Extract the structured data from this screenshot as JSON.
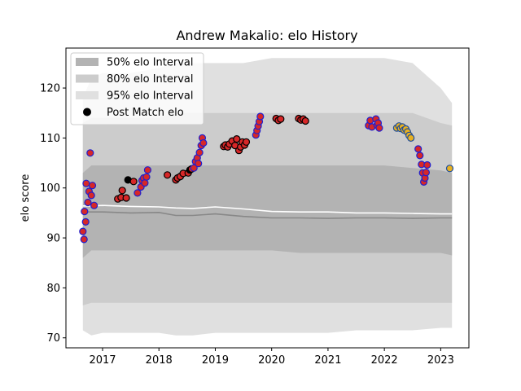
{
  "chart_data": {
    "type": "scatter",
    "title": "Andrew Makalio: elo History",
    "xlabel": "",
    "ylabel": "elo score",
    "xlim": [
      2016.35,
      2023.5
    ],
    "ylim": [
      68,
      128
    ],
    "x_ticks": [
      2017,
      2018,
      2019,
      2020,
      2021,
      2022,
      2023
    ],
    "x_tick_labels": [
      "2017",
      "2018",
      "2019",
      "2020",
      "2021",
      "2022",
      "2023"
    ],
    "y_ticks": [
      70,
      80,
      90,
      100,
      110,
      120
    ],
    "y_tick_labels": [
      "70",
      "80",
      "90",
      "100",
      "110",
      "120"
    ],
    "legend_position": "top-left",
    "legend": [
      {
        "label": "50% elo Interval",
        "kind": "band",
        "color": "#b3b3b3"
      },
      {
        "label": "80% elo Interval",
        "kind": "band",
        "color": "#cccccc"
      },
      {
        "label": "95% elo Interval",
        "kind": "band",
        "color": "#e0e0e0"
      },
      {
        "label": "Post Match elo",
        "kind": "marker",
        "color": "#000000"
      }
    ],
    "colors": {
      "band95": "#e0e0e0",
      "band80": "#cccccc",
      "band50": "#b3b3b3",
      "median_line": "#888888",
      "mean_line": "#ffffff",
      "marker_red": "#d62728",
      "edge_blue": "#1f1fcf",
      "edge_black": "#000000",
      "marker_gold": "#e8b020",
      "edge_navy": "#1f4e9b"
    },
    "intervals": {
      "x": [
        2016.65,
        2016.8,
        2017.0,
        2017.5,
        2018.0,
        2018.3,
        2018.6,
        2019.0,
        2019.5,
        2020.0,
        2020.5,
        2021.0,
        2021.5,
        2022.0,
        2022.5,
        2023.0,
        2023.2
      ],
      "band95_upper": [
        118,
        122,
        123,
        123,
        124,
        125,
        125,
        125,
        125,
        126,
        126,
        126,
        126,
        126,
        125,
        120,
        117
      ],
      "band95_lower": [
        71.5,
        70.5,
        71,
        71,
        71,
        70.5,
        70.5,
        71,
        71,
        71,
        71,
        71,
        71.5,
        71.5,
        71.5,
        72,
        72
      ],
      "band80_upper": [
        113,
        114,
        114,
        114,
        114,
        115,
        115,
        115,
        115,
        115,
        115,
        115,
        115,
        115,
        115,
        113,
        112.5
      ],
      "band80_lower": [
        76.5,
        77,
        77,
        77,
        77,
        77,
        77,
        77,
        77,
        77,
        77,
        77,
        77,
        77,
        77,
        77,
        77
      ],
      "band50_upper": [
        103,
        104.5,
        104.5,
        104.5,
        104.5,
        104.5,
        104.5,
        104.5,
        104.5,
        104.5,
        104.5,
        104.5,
        104.5,
        104.5,
        104,
        103.5,
        103
      ],
      "band50_lower": [
        86,
        87.5,
        87.5,
        87.5,
        87.5,
        87.5,
        87.5,
        87.5,
        87.5,
        87.5,
        87,
        87,
        87,
        87,
        87,
        87,
        86.5
      ],
      "median": [
        95.2,
        95.2,
        95.2,
        95.0,
        95.1,
        94.5,
        94.5,
        94.8,
        94.3,
        94.0,
        94.0,
        93.9,
        94.0,
        94.0,
        93.9,
        94.0,
        94.0
      ],
      "mean": [
        96.4,
        96.4,
        96.5,
        96.3,
        96.2,
        96.0,
        95.9,
        96.2,
        95.8,
        95.3,
        95.2,
        95.2,
        95.0,
        95.0,
        94.9,
        94.8,
        94.8
      ]
    },
    "points": [
      {
        "x": 2016.65,
        "y": 91.3,
        "fill": "red",
        "edge": "blue"
      },
      {
        "x": 2016.67,
        "y": 89.7,
        "fill": "red",
        "edge": "blue"
      },
      {
        "x": 2016.68,
        "y": 95.3,
        "fill": "red",
        "edge": "blue"
      },
      {
        "x": 2016.7,
        "y": 93.2,
        "fill": "red",
        "edge": "blue"
      },
      {
        "x": 2016.71,
        "y": 100.9,
        "fill": "red",
        "edge": "blue"
      },
      {
        "x": 2016.74,
        "y": 97.1,
        "fill": "red",
        "edge": "blue"
      },
      {
        "x": 2016.76,
        "y": 99.3,
        "fill": "red",
        "edge": "blue"
      },
      {
        "x": 2016.78,
        "y": 107.0,
        "fill": "red",
        "edge": "blue"
      },
      {
        "x": 2016.8,
        "y": 98.5,
        "fill": "red",
        "edge": "blue"
      },
      {
        "x": 2016.82,
        "y": 100.5,
        "fill": "red",
        "edge": "blue"
      },
      {
        "x": 2016.85,
        "y": 96.5,
        "fill": "red",
        "edge": "blue"
      },
      {
        "x": 2017.27,
        "y": 97.8,
        "fill": "red",
        "edge": "black"
      },
      {
        "x": 2017.33,
        "y": 98.1,
        "fill": "red",
        "edge": "black"
      },
      {
        "x": 2017.35,
        "y": 99.5,
        "fill": "red",
        "edge": "black"
      },
      {
        "x": 2017.42,
        "y": 98.0,
        "fill": "red",
        "edge": "black"
      },
      {
        "x": 2017.45,
        "y": 101.6,
        "fill": "black",
        "edge": "black"
      },
      {
        "x": 2017.55,
        "y": 101.3,
        "fill": "red",
        "edge": "black"
      },
      {
        "x": 2017.62,
        "y": 99.0,
        "fill": "red",
        "edge": "blue"
      },
      {
        "x": 2017.68,
        "y": 100.2,
        "fill": "red",
        "edge": "blue"
      },
      {
        "x": 2017.7,
        "y": 101.5,
        "fill": "red",
        "edge": "blue"
      },
      {
        "x": 2017.73,
        "y": 102.0,
        "fill": "red",
        "edge": "blue"
      },
      {
        "x": 2017.75,
        "y": 101.0,
        "fill": "red",
        "edge": "blue"
      },
      {
        "x": 2017.78,
        "y": 102.2,
        "fill": "red",
        "edge": "blue"
      },
      {
        "x": 2017.8,
        "y": 103.6,
        "fill": "red",
        "edge": "blue"
      },
      {
        "x": 2018.15,
        "y": 102.6,
        "fill": "red",
        "edge": "black"
      },
      {
        "x": 2018.3,
        "y": 101.6,
        "fill": "red",
        "edge": "black"
      },
      {
        "x": 2018.33,
        "y": 102.0,
        "fill": "red",
        "edge": "black"
      },
      {
        "x": 2018.38,
        "y": 102.3,
        "fill": "red",
        "edge": "black"
      },
      {
        "x": 2018.43,
        "y": 102.9,
        "fill": "red",
        "edge": "black"
      },
      {
        "x": 2018.52,
        "y": 103.0,
        "fill": "red",
        "edge": "black"
      },
      {
        "x": 2018.55,
        "y": 103.6,
        "fill": "black",
        "edge": "black"
      },
      {
        "x": 2018.58,
        "y": 103.8,
        "fill": "red",
        "edge": "black"
      },
      {
        "x": 2018.62,
        "y": 104.0,
        "fill": "red",
        "edge": "blue"
      },
      {
        "x": 2018.65,
        "y": 105.3,
        "fill": "red",
        "edge": "blue"
      },
      {
        "x": 2018.68,
        "y": 106.0,
        "fill": "red",
        "edge": "blue"
      },
      {
        "x": 2018.7,
        "y": 104.9,
        "fill": "red",
        "edge": "blue"
      },
      {
        "x": 2018.72,
        "y": 107.1,
        "fill": "red",
        "edge": "blue"
      },
      {
        "x": 2018.75,
        "y": 108.5,
        "fill": "red",
        "edge": "blue"
      },
      {
        "x": 2018.77,
        "y": 110.0,
        "fill": "red",
        "edge": "blue"
      },
      {
        "x": 2018.79,
        "y": 109.0,
        "fill": "red",
        "edge": "blue"
      },
      {
        "x": 2019.15,
        "y": 108.3,
        "fill": "red",
        "edge": "black"
      },
      {
        "x": 2019.18,
        "y": 108.6,
        "fill": "red",
        "edge": "black"
      },
      {
        "x": 2019.22,
        "y": 108.2,
        "fill": "red",
        "edge": "black"
      },
      {
        "x": 2019.25,
        "y": 108.8,
        "fill": "red",
        "edge": "black"
      },
      {
        "x": 2019.3,
        "y": 109.4,
        "fill": "red",
        "edge": "black"
      },
      {
        "x": 2019.35,
        "y": 108.5,
        "fill": "red",
        "edge": "black"
      },
      {
        "x": 2019.38,
        "y": 109.8,
        "fill": "red",
        "edge": "black"
      },
      {
        "x": 2019.42,
        "y": 107.5,
        "fill": "red",
        "edge": "black"
      },
      {
        "x": 2019.45,
        "y": 108.2,
        "fill": "red",
        "edge": "black"
      },
      {
        "x": 2019.48,
        "y": 109.2,
        "fill": "red",
        "edge": "black"
      },
      {
        "x": 2019.52,
        "y": 108.6,
        "fill": "red",
        "edge": "black"
      },
      {
        "x": 2019.55,
        "y": 109.2,
        "fill": "red",
        "edge": "black"
      },
      {
        "x": 2019.72,
        "y": 110.6,
        "fill": "red",
        "edge": "blue"
      },
      {
        "x": 2019.74,
        "y": 111.5,
        "fill": "red",
        "edge": "blue"
      },
      {
        "x": 2019.76,
        "y": 112.4,
        "fill": "red",
        "edge": "blue"
      },
      {
        "x": 2019.78,
        "y": 113.3,
        "fill": "red",
        "edge": "blue"
      },
      {
        "x": 2019.8,
        "y": 114.3,
        "fill": "red",
        "edge": "blue"
      },
      {
        "x": 2020.08,
        "y": 113.9,
        "fill": "red",
        "edge": "black"
      },
      {
        "x": 2020.12,
        "y": 113.5,
        "fill": "red",
        "edge": "black"
      },
      {
        "x": 2020.16,
        "y": 113.8,
        "fill": "red",
        "edge": "black"
      },
      {
        "x": 2020.48,
        "y": 113.9,
        "fill": "red",
        "edge": "black"
      },
      {
        "x": 2020.52,
        "y": 113.6,
        "fill": "red",
        "edge": "black"
      },
      {
        "x": 2020.56,
        "y": 113.8,
        "fill": "red",
        "edge": "black"
      },
      {
        "x": 2020.6,
        "y": 113.4,
        "fill": "red",
        "edge": "black"
      },
      {
        "x": 2021.72,
        "y": 112.5,
        "fill": "red",
        "edge": "blue"
      },
      {
        "x": 2021.75,
        "y": 113.5,
        "fill": "red",
        "edge": "blue"
      },
      {
        "x": 2021.78,
        "y": 112.2,
        "fill": "red",
        "edge": "blue"
      },
      {
        "x": 2021.85,
        "y": 113.8,
        "fill": "red",
        "edge": "blue"
      },
      {
        "x": 2021.87,
        "y": 112.6,
        "fill": "red",
        "edge": "blue"
      },
      {
        "x": 2021.89,
        "y": 113.0,
        "fill": "red",
        "edge": "blue"
      },
      {
        "x": 2021.91,
        "y": 112.0,
        "fill": "red",
        "edge": "blue"
      },
      {
        "x": 2022.22,
        "y": 112.0,
        "fill": "gold",
        "edge": "navy"
      },
      {
        "x": 2022.26,
        "y": 112.4,
        "fill": "gold",
        "edge": "navy"
      },
      {
        "x": 2022.29,
        "y": 111.9,
        "fill": "gold",
        "edge": "navy"
      },
      {
        "x": 2022.32,
        "y": 112.2,
        "fill": "gold",
        "edge": "navy"
      },
      {
        "x": 2022.35,
        "y": 111.6,
        "fill": "gold",
        "edge": "navy"
      },
      {
        "x": 2022.38,
        "y": 111.8,
        "fill": "gold",
        "edge": "navy"
      },
      {
        "x": 2022.41,
        "y": 111.2,
        "fill": "gold",
        "edge": "navy"
      },
      {
        "x": 2022.44,
        "y": 110.5,
        "fill": "gold",
        "edge": "navy"
      },
      {
        "x": 2022.47,
        "y": 110.0,
        "fill": "gold",
        "edge": "navy"
      },
      {
        "x": 2022.6,
        "y": 107.8,
        "fill": "red",
        "edge": "blue"
      },
      {
        "x": 2022.63,
        "y": 106.5,
        "fill": "red",
        "edge": "blue"
      },
      {
        "x": 2022.66,
        "y": 104.7,
        "fill": "red",
        "edge": "blue"
      },
      {
        "x": 2022.68,
        "y": 103.0,
        "fill": "red",
        "edge": "blue"
      },
      {
        "x": 2022.7,
        "y": 101.2,
        "fill": "red",
        "edge": "blue"
      },
      {
        "x": 2022.72,
        "y": 102.0,
        "fill": "red",
        "edge": "blue"
      },
      {
        "x": 2022.74,
        "y": 103.1,
        "fill": "red",
        "edge": "blue"
      },
      {
        "x": 2022.76,
        "y": 104.6,
        "fill": "red",
        "edge": "blue"
      },
      {
        "x": 2023.16,
        "y": 103.9,
        "fill": "gold",
        "edge": "navy"
      }
    ]
  }
}
